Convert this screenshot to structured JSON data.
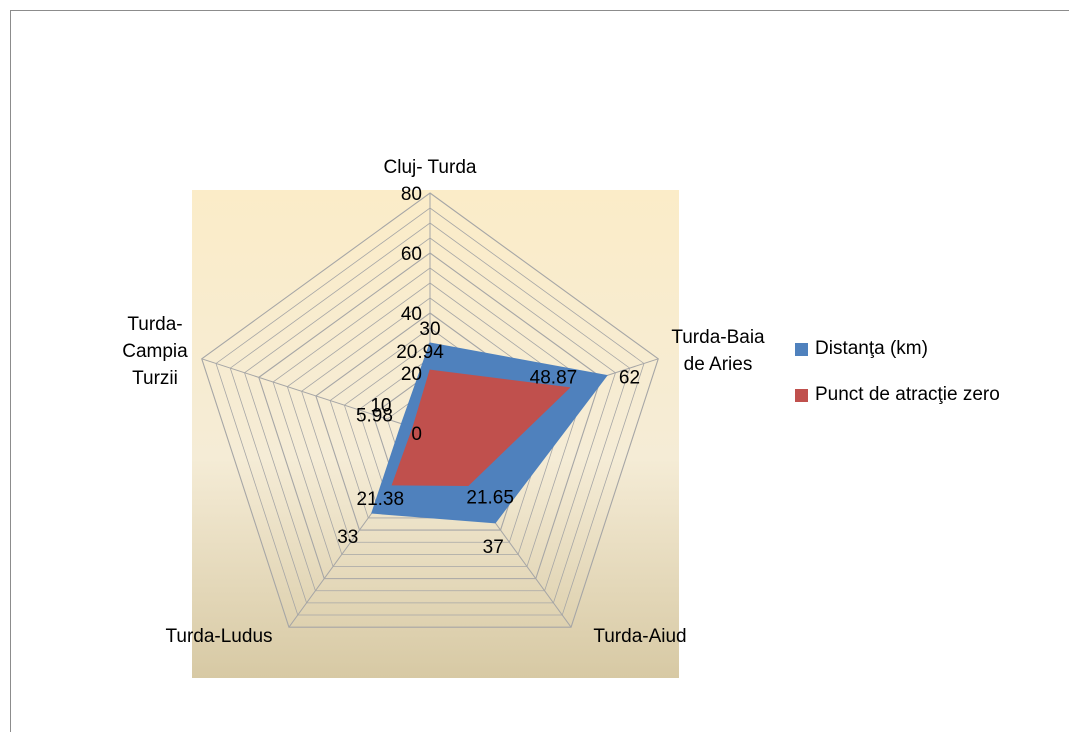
{
  "chart_data": {
    "type": "radar",
    "axis_labels": [
      [
        "Cluj- Turda"
      ],
      [
        "Turda-Baia",
        "de Aries"
      ],
      [
        "Turda-Aiud"
      ],
      [
        "Turda-Ludus"
      ],
      [
        "Turda-",
        "Campia",
        "Turzii"
      ]
    ],
    "ticks": [
      0,
      20,
      40,
      60,
      80
    ],
    "rmax": 80,
    "series": [
      {
        "name": "Distanţa (km)",
        "color": "#4f81bd",
        "values": [
          30,
          62,
          37,
          33,
          10
        ]
      },
      {
        "name": "Punct de atracţie zero",
        "color": "#c0504d",
        "values": [
          20.94,
          48.87,
          21.65,
          21.38,
          5.98
        ]
      }
    ],
    "background": {
      "top": "#fbecc8",
      "bottom": "#d7c9a4"
    },
    "grid_color": "#a6a6a6"
  }
}
